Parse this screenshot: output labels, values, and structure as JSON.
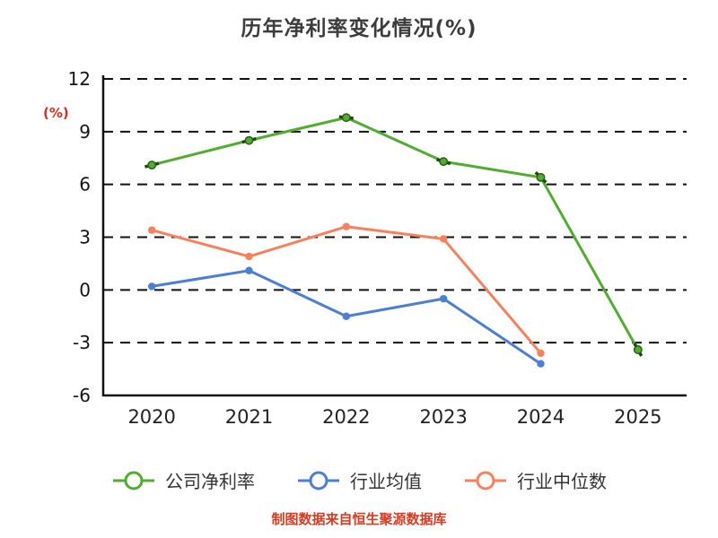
{
  "chart_data": {
    "type": "line",
    "title": "历年净利率变化情况(%)",
    "ylabel": "(%)",
    "source_note": "制图数据来自恒生聚源数据库",
    "x": [
      "2020",
      "2021",
      "2022",
      "2023",
      "2024",
      "2025"
    ],
    "ylim": [
      -6,
      12
    ],
    "yticks": [
      12,
      9,
      6,
      3,
      0,
      -3,
      -6
    ],
    "grid": "horizontal dashed black lines",
    "legend_position": "bottom",
    "series": [
      {
        "name": "公司净利率",
        "color": "#4fae2c",
        "marker_edge": "#2a5d16",
        "values": [
          7.1,
          8.5,
          9.8,
          7.3,
          6.4,
          -3.4
        ]
      },
      {
        "name": "行业均值",
        "color": "#4b7fd5",
        "marker_edge": "#4b7fd5",
        "values": [
          0.2,
          1.1,
          -1.5,
          -0.5,
          -4.2,
          null
        ]
      },
      {
        "name": "行业中位数",
        "color": "#f8815c",
        "marker_edge": "#f8815c",
        "values": [
          3.4,
          1.9,
          3.6,
          2.9,
          -3.6,
          null
        ]
      }
    ],
    "colors": {
      "grid": "#111111",
      "axis": "#111111",
      "title": "#3c3c3c",
      "ylabel_red": "#e02b16",
      "source_red": "#d93a20"
    }
  }
}
